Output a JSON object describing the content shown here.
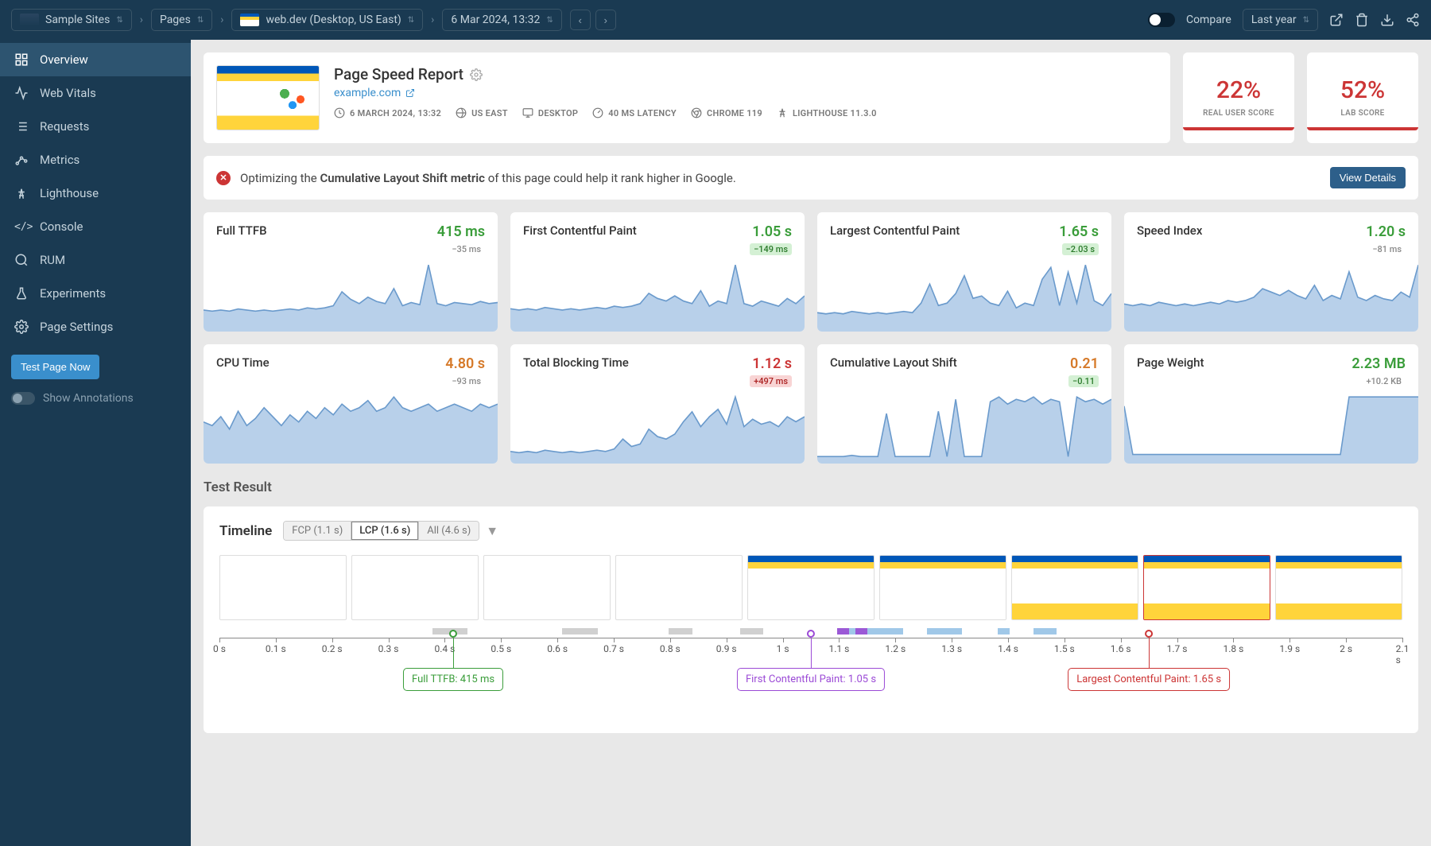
{
  "topbar": {
    "site": "Sample Sites",
    "pages": "Pages",
    "page": "web.dev (Desktop, US East)",
    "snapshot": "6 Mar 2024, 13:32",
    "compare": "Compare",
    "range": "Last year"
  },
  "sidebar": {
    "items": [
      {
        "label": "Overview",
        "icon": "dashboard",
        "active": true
      },
      {
        "label": "Web Vitals",
        "icon": "vitals"
      },
      {
        "label": "Requests",
        "icon": "list"
      },
      {
        "label": "Metrics",
        "icon": "metrics"
      },
      {
        "label": "Lighthouse",
        "icon": "lighthouse"
      },
      {
        "label": "Console",
        "icon": "console"
      },
      {
        "label": "RUM",
        "icon": "rum"
      },
      {
        "label": "Experiments",
        "icon": "flask"
      },
      {
        "label": "Page Settings",
        "icon": "gear"
      }
    ],
    "test_btn": "Test Page Now",
    "annotations": "Show Annotations"
  },
  "header": {
    "title": "Page Speed Report",
    "domain": "example.com",
    "meta": {
      "date": "6 MARCH 2024, 13:32",
      "region": "US EAST",
      "device": "DESKTOP",
      "latency": "40 MS LATENCY",
      "browser": "CHROME 119",
      "lighthouse": "LIGHTHOUSE 11.3.0"
    }
  },
  "scores": [
    {
      "value": "22%",
      "label": "REAL USER SCORE",
      "color": "#cc3535"
    },
    {
      "value": "52%",
      "label": "LAB SCORE",
      "color": "#cc3535"
    }
  ],
  "alert": {
    "pre": "Optimizing the ",
    "bold": "Cumulative Layout Shift metric",
    "post": " of this page could help it rank higher in Google.",
    "button": "View Details"
  },
  "metrics": [
    {
      "name": "Full TTFB",
      "value": "415 ms",
      "delta": "−35 ms",
      "value_color": "#3a9d3a",
      "delta_bg": "transparent",
      "delta_color": "#888",
      "spark": [
        18,
        17,
        18,
        17,
        19,
        18,
        17,
        18,
        17,
        18,
        19,
        18,
        20,
        19,
        20,
        22,
        35,
        28,
        24,
        30,
        26,
        24,
        38,
        22,
        25,
        23,
        60,
        24,
        22,
        25,
        24,
        23,
        26,
        24,
        25
      ]
    },
    {
      "name": "First Contentful Paint",
      "value": "1.05 s",
      "delta": "−149 ms",
      "value_color": "#3a9d3a",
      "delta_bg": "#d4f0d4",
      "delta_color": "#2a7a2a",
      "spark": [
        16,
        15,
        16,
        15,
        17,
        16,
        15,
        16,
        15,
        16,
        17,
        16,
        18,
        17,
        18,
        20,
        28,
        24,
        22,
        26,
        22,
        20,
        30,
        18,
        22,
        20,
        50,
        20,
        18,
        22,
        20,
        18,
        24,
        20,
        26
      ]
    },
    {
      "name": "Largest Contentful Paint",
      "value": "1.65 s",
      "delta": "−2.03 s",
      "value_color": "#3a9d3a",
      "delta_bg": "#d4f0d4",
      "delta_color": "#2a7a2a",
      "spark": [
        14,
        13,
        14,
        13,
        15,
        14,
        13,
        14,
        13,
        14,
        15,
        14,
        22,
        38,
        20,
        22,
        30,
        45,
        26,
        28,
        22,
        20,
        32,
        18,
        22,
        20,
        42,
        52,
        20,
        48,
        22,
        54,
        24,
        20,
        30
      ]
    },
    {
      "name": "Speed Index",
      "value": "1.20 s",
      "delta": "−81 ms",
      "value_color": "#3a9d3a",
      "delta_bg": "transparent",
      "delta_color": "#888",
      "spark": [
        15,
        14,
        15,
        14,
        16,
        15,
        14,
        15,
        14,
        15,
        16,
        15,
        17,
        16,
        17,
        19,
        24,
        22,
        20,
        23,
        20,
        18,
        26,
        17,
        20,
        18,
        34,
        19,
        17,
        20,
        18,
        17,
        22,
        19,
        38
      ]
    },
    {
      "name": "CPU Time",
      "value": "4.80 s",
      "delta": "−93 ms",
      "value_color": "#d67a2a",
      "delta_bg": "transparent",
      "delta_color": "#888",
      "spark": [
        22,
        20,
        25,
        18,
        28,
        20,
        24,
        30,
        25,
        20,
        26,
        22,
        28,
        24,
        30,
        26,
        32,
        28,
        30,
        34,
        28,
        30,
        36,
        30,
        28,
        30,
        32,
        28,
        30,
        32,
        30,
        28,
        32,
        30,
        32
      ]
    },
    {
      "name": "Total Blocking Time",
      "value": "1.12 s",
      "delta": "+497 ms",
      "value_color": "#cc3535",
      "delta_bg": "#f8d4d4",
      "delta_color": "#aa2020",
      "spark": [
        8,
        7,
        8,
        7,
        9,
        8,
        7,
        8,
        7,
        8,
        9,
        8,
        10,
        18,
        12,
        14,
        26,
        20,
        18,
        22,
        32,
        40,
        28,
        36,
        42,
        30,
        52,
        28,
        34,
        30,
        32,
        28,
        36,
        32,
        36
      ]
    },
    {
      "name": "Cumulative Layout Shift",
      "value": "0.21",
      "delta": "−0.11",
      "value_color": "#d67a2a",
      "delta_bg": "#d4f0d4",
      "delta_color": "#2a7a2a",
      "spark": [
        4,
        4,
        4,
        4,
        5,
        4,
        4,
        4,
        40,
        4,
        4,
        4,
        4,
        4,
        42,
        4,
        52,
        4,
        4,
        4,
        50,
        54,
        48,
        52,
        50,
        54,
        48,
        52,
        50,
        4,
        54,
        50,
        52,
        48,
        52
      ]
    },
    {
      "name": "Page Weight",
      "value": "2.23 MB",
      "delta": "+10.2 KB",
      "value_color": "#3a9d3a",
      "delta_bg": "transparent",
      "delta_color": "#888",
      "spark": [
        48,
        6,
        6,
        6,
        6,
        6,
        6,
        6,
        6,
        6,
        6,
        6,
        6,
        6,
        6,
        6,
        6,
        6,
        6,
        6,
        6,
        6,
        6,
        6,
        6,
        6,
        56,
        56,
        56,
        56,
        56,
        56,
        56,
        56,
        56
      ]
    }
  ],
  "spark_style": {
    "fill": "#b8d0ea",
    "stroke": "#6a9acc",
    "height": 65
  },
  "test_result": {
    "title": "Test Result",
    "timeline": {
      "label": "Timeline",
      "tabs": [
        {
          "label": "FCP (1.1 s)",
          "active": false
        },
        {
          "label": "LCP (1.6 s)",
          "active": true
        },
        {
          "label": "All (4.6 s)",
          "active": false
        }
      ],
      "frames": [
        {
          "filled": false
        },
        {
          "filled": false
        },
        {
          "filled": false
        },
        {
          "filled": false
        },
        {
          "filled": true,
          "partial": true
        },
        {
          "filled": true,
          "partial": true
        },
        {
          "filled": true
        },
        {
          "filled": true,
          "marked": true
        },
        {
          "filled": true
        }
      ],
      "segments": [
        {
          "width": 18,
          "color": "transparent"
        },
        {
          "width": 3,
          "color": "#d0d0d0"
        },
        {
          "width": 8,
          "color": "transparent"
        },
        {
          "width": 3,
          "color": "#d0d0d0"
        },
        {
          "width": 6,
          "color": "transparent"
        },
        {
          "width": 2,
          "color": "#d0d0d0"
        },
        {
          "width": 4,
          "color": "transparent"
        },
        {
          "width": 2,
          "color": "#d0d0d0"
        },
        {
          "width": 6.2,
          "color": "transparent"
        },
        {
          "width": 1,
          "color": "#9b59d6"
        },
        {
          "width": 0.6,
          "color": "#a0c8e8"
        },
        {
          "width": 1,
          "color": "#9b59d6"
        },
        {
          "width": 3,
          "color": "#a0c8e8"
        },
        {
          "width": 2,
          "color": "transparent"
        },
        {
          "width": 3,
          "color": "#a0c8e8"
        },
        {
          "width": 3,
          "color": "transparent"
        },
        {
          "width": 1,
          "color": "#a0c8e8"
        },
        {
          "width": 2,
          "color": "transparent"
        },
        {
          "width": 2,
          "color": "#a0c8e8"
        }
      ],
      "axis": {
        "min": 0,
        "max": 2.1,
        "step": 0.1,
        "unit": " s"
      },
      "markers": [
        {
          "label": "Full TTFB: 415 ms",
          "pos": 0.415,
          "color": "#3a9d3a"
        },
        {
          "label": "First Contentful Paint: 1.05 s",
          "pos": 1.05,
          "color": "#9b4ad6"
        },
        {
          "label": "Largest Contentful Paint: 1.65 s",
          "pos": 1.65,
          "color": "#cc3535"
        }
      ]
    }
  }
}
